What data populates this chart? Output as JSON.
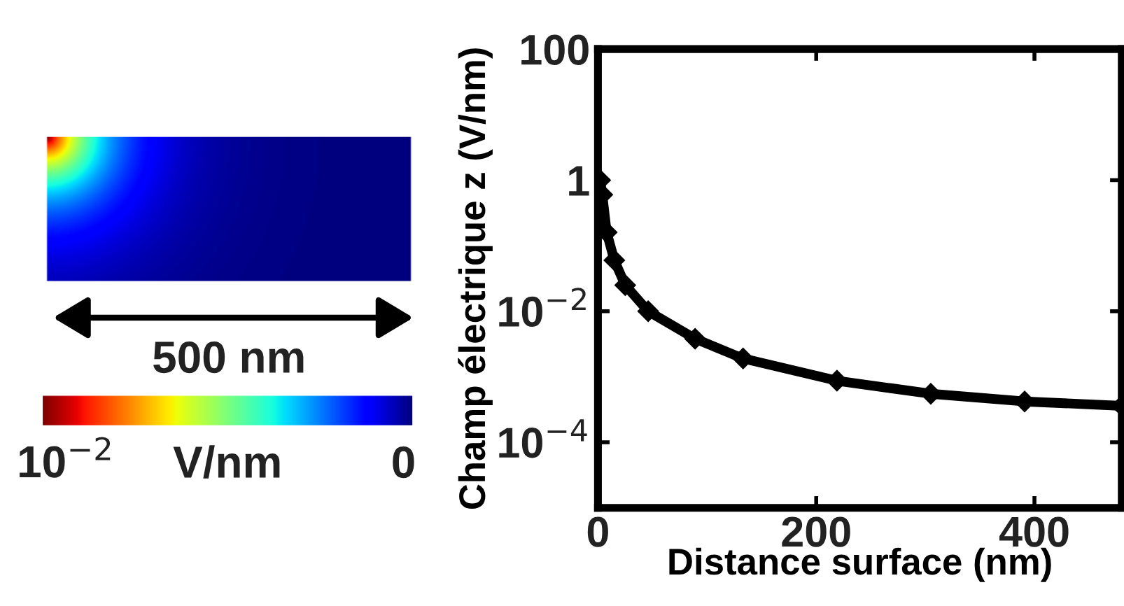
{
  "chart_data": {
    "type": "line",
    "xlabel": "Distance surface (nm)",
    "ylabel": "Champ électrique z (V/nm)",
    "x": [
      0,
      2,
      4,
      8,
      15,
      25,
      46,
      89,
      133,
      219,
      305,
      391,
      480
    ],
    "series": [
      {
        "color": "#000000",
        "values": [
          0.3,
          1,
          0.6,
          0.16,
          0.06,
          0.025,
          0.01,
          0.0038,
          0.0019,
          0.00087,
          0.00055,
          0.00042,
          0.00036
        ]
      }
    ],
    "log": "y",
    "xlim": [
      0,
      480
    ],
    "ylim": [
      1e-05,
      100
    ],
    "xticks": [
      0,
      200,
      400
    ],
    "yticks": [
      100,
      1,
      {
        "value": 0.01,
        "label": "10$^{−2}$"
      },
      {
        "value": 0.0001,
        "label": "10$^{−4}$"
      }
    ],
    "marker": "diamond",
    "grid": false,
    "legend": false,
    "annotations": [
      "500 nm",
      "10$^{−2}$",
      "V/nm",
      "0"
    ]
  }
}
